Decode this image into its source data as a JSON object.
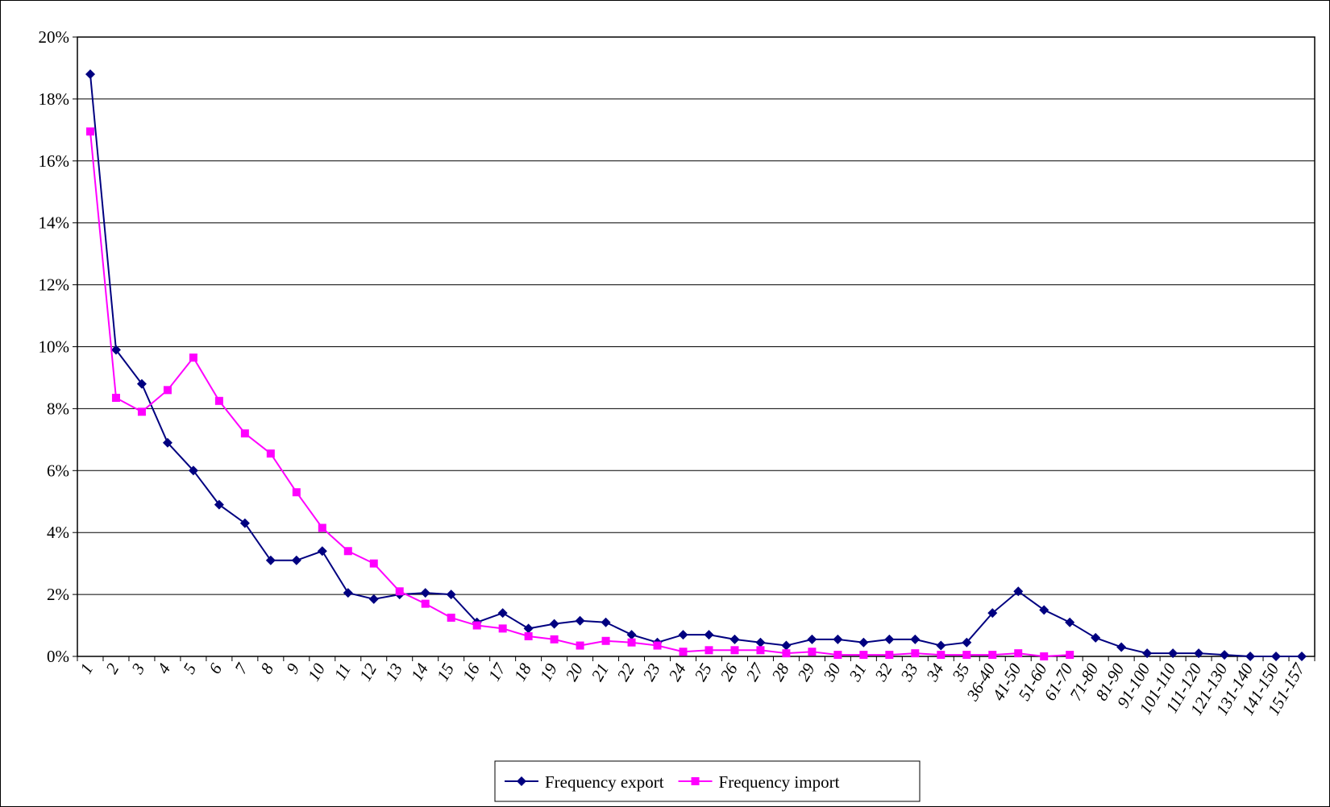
{
  "chart_data": {
    "type": "line",
    "categories": [
      "1",
      "2",
      "3",
      "4",
      "5",
      "6",
      "7",
      "8",
      "9",
      "10",
      "11",
      "12",
      "13",
      "14",
      "15",
      "16",
      "17",
      "18",
      "19",
      "20",
      "21",
      "22",
      "23",
      "24",
      "25",
      "26",
      "27",
      "28",
      "29",
      "30",
      "31",
      "32",
      "33",
      "34",
      "35",
      "36-40",
      "41-50",
      "51-60",
      "61-70",
      "71-80",
      "81-90",
      "91-100",
      "101-110",
      "111-120",
      "121-130",
      "131-140",
      "141-150",
      "151-157"
    ],
    "series": [
      {
        "name": "Frequency export",
        "color": "#000080",
        "marker": "diamond",
        "values": [
          18.8,
          9.9,
          8.8,
          6.9,
          6.0,
          4.9,
          4.3,
          3.1,
          3.1,
          3.4,
          2.05,
          1.85,
          2.0,
          2.05,
          2.0,
          1.1,
          1.4,
          0.9,
          1.05,
          1.15,
          1.1,
          0.7,
          0.45,
          0.7,
          0.7,
          0.55,
          0.45,
          0.35,
          0.55,
          0.55,
          0.45,
          0.55,
          0.55,
          0.35,
          0.45,
          1.4,
          2.1,
          1.5,
          1.1,
          0.6,
          0.3,
          0.1,
          0.1,
          0.1,
          0.05,
          0,
          0,
          0
        ]
      },
      {
        "name": "Frequency import",
        "color": "#ff00ff",
        "marker": "square",
        "values": [
          16.95,
          8.35,
          7.9,
          8.6,
          9.65,
          8.25,
          7.2,
          6.55,
          5.3,
          4.15,
          3.4,
          3.0,
          2.1,
          1.7,
          1.25,
          1.0,
          0.9,
          0.65,
          0.55,
          0.35,
          0.5,
          0.45,
          0.35,
          0.15,
          0.2,
          0.2,
          0.2,
          0.1,
          0.15,
          0.05,
          0.05,
          0.05,
          0.1,
          0.05,
          0.05,
          0.05,
          0.1,
          0.0,
          0.05,
          null,
          null,
          null,
          null,
          null,
          null,
          null,
          null,
          null
        ]
      }
    ],
    "ylim": [
      0,
      20
    ],
    "yticks": [
      {
        "value": 0,
        "label": "0%"
      },
      {
        "value": 2,
        "label": "2%"
      },
      {
        "value": 4,
        "label": "4%"
      },
      {
        "value": 6,
        "label": "6%"
      },
      {
        "value": 8,
        "label": "8%"
      },
      {
        "value": 10,
        "label": "10%"
      },
      {
        "value": 12,
        "label": "12%"
      },
      {
        "value": 14,
        "label": "14%"
      },
      {
        "value": 16,
        "label": "16%"
      },
      {
        "value": 18,
        "label": "18%"
      },
      {
        "value": 20,
        "label": "20%"
      }
    ],
    "grid": true
  }
}
